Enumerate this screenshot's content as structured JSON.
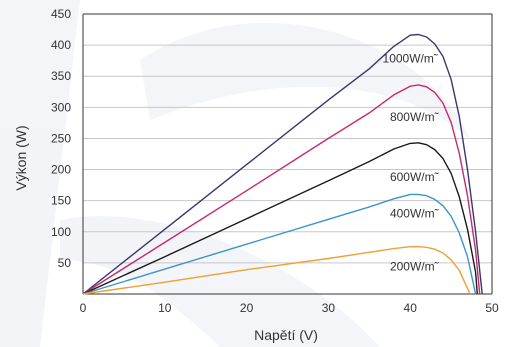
{
  "chart_data": {
    "type": "line",
    "xlabel": "Napětí  (V)",
    "ylabel": "Výkon (W)",
    "xlim": [
      0,
      50
    ],
    "ylim": [
      0,
      450
    ],
    "x_ticks": [
      0,
      10,
      20,
      30,
      40,
      50
    ],
    "y_ticks": [
      50,
      100,
      150,
      200,
      250,
      300,
      350,
      400,
      450
    ],
    "grid": "horizontal",
    "series": [
      {
        "name": "1000W/m˜",
        "color": "#3a3670",
        "label_at": [
          40,
          372
        ],
        "points": [
          [
            0,
            0
          ],
          [
            10,
            104
          ],
          [
            20,
            208
          ],
          [
            30,
            312
          ],
          [
            35,
            362
          ],
          [
            38,
            398
          ],
          [
            40,
            416
          ],
          [
            41,
            417
          ],
          [
            42,
            413
          ],
          [
            43,
            402
          ],
          [
            44,
            382
          ],
          [
            45,
            345
          ],
          [
            46,
            285
          ],
          [
            47,
            200
          ],
          [
            48,
            100
          ],
          [
            48.8,
            0
          ]
        ]
      },
      {
        "name": "800W/m˜",
        "color": "#c8286e",
        "label_at": [
          40.5,
          278
        ],
        "points": [
          [
            0,
            0
          ],
          [
            10,
            83
          ],
          [
            20,
            166
          ],
          [
            30,
            250
          ],
          [
            35,
            291
          ],
          [
            38,
            320
          ],
          [
            40,
            334
          ],
          [
            41,
            336
          ],
          [
            42,
            333
          ],
          [
            43,
            324
          ],
          [
            44,
            307
          ],
          [
            45,
            276
          ],
          [
            46,
            226
          ],
          [
            47,
            158
          ],
          [
            48,
            70
          ],
          [
            48.5,
            0
          ]
        ]
      },
      {
        "name": "600W/m˜",
        "color": "#1a1a1a",
        "label_at": [
          40.5,
          182
        ],
        "points": [
          [
            0,
            0
          ],
          [
            10,
            60
          ],
          [
            20,
            121
          ],
          [
            30,
            182
          ],
          [
            35,
            213
          ],
          [
            38,
            233
          ],
          [
            40,
            242
          ],
          [
            41,
            243
          ],
          [
            42,
            240
          ],
          [
            43,
            232
          ],
          [
            44,
            218
          ],
          [
            45,
            194
          ],
          [
            46,
            156
          ],
          [
            47,
            104
          ],
          [
            48,
            35
          ],
          [
            48.2,
            0
          ]
        ]
      },
      {
        "name": "400W/m˜",
        "color": "#3b96c8",
        "label_at": [
          40.5,
          123
        ],
        "points": [
          [
            0,
            0
          ],
          [
            10,
            40
          ],
          [
            20,
            80
          ],
          [
            30,
            120
          ],
          [
            35,
            140
          ],
          [
            38,
            153
          ],
          [
            40,
            160
          ],
          [
            41,
            160
          ],
          [
            42,
            158
          ],
          [
            43,
            152
          ],
          [
            44,
            142
          ],
          [
            45,
            125
          ],
          [
            46,
            98
          ],
          [
            47,
            60
          ],
          [
            48,
            0
          ]
        ]
      },
      {
        "name": "200W/m˜",
        "color": "#f0a030",
        "label_at": [
          40.5,
          38
        ],
        "points": [
          [
            0,
            0
          ],
          [
            10,
            19
          ],
          [
            20,
            39
          ],
          [
            30,
            57
          ],
          [
            35,
            67
          ],
          [
            38,
            73
          ],
          [
            40,
            76
          ],
          [
            41,
            76
          ],
          [
            42,
            75
          ],
          [
            43,
            72
          ],
          [
            44,
            66
          ],
          [
            45,
            55
          ],
          [
            46,
            38
          ],
          [
            46.8,
            15
          ],
          [
            47.3,
            0
          ]
        ]
      }
    ]
  }
}
